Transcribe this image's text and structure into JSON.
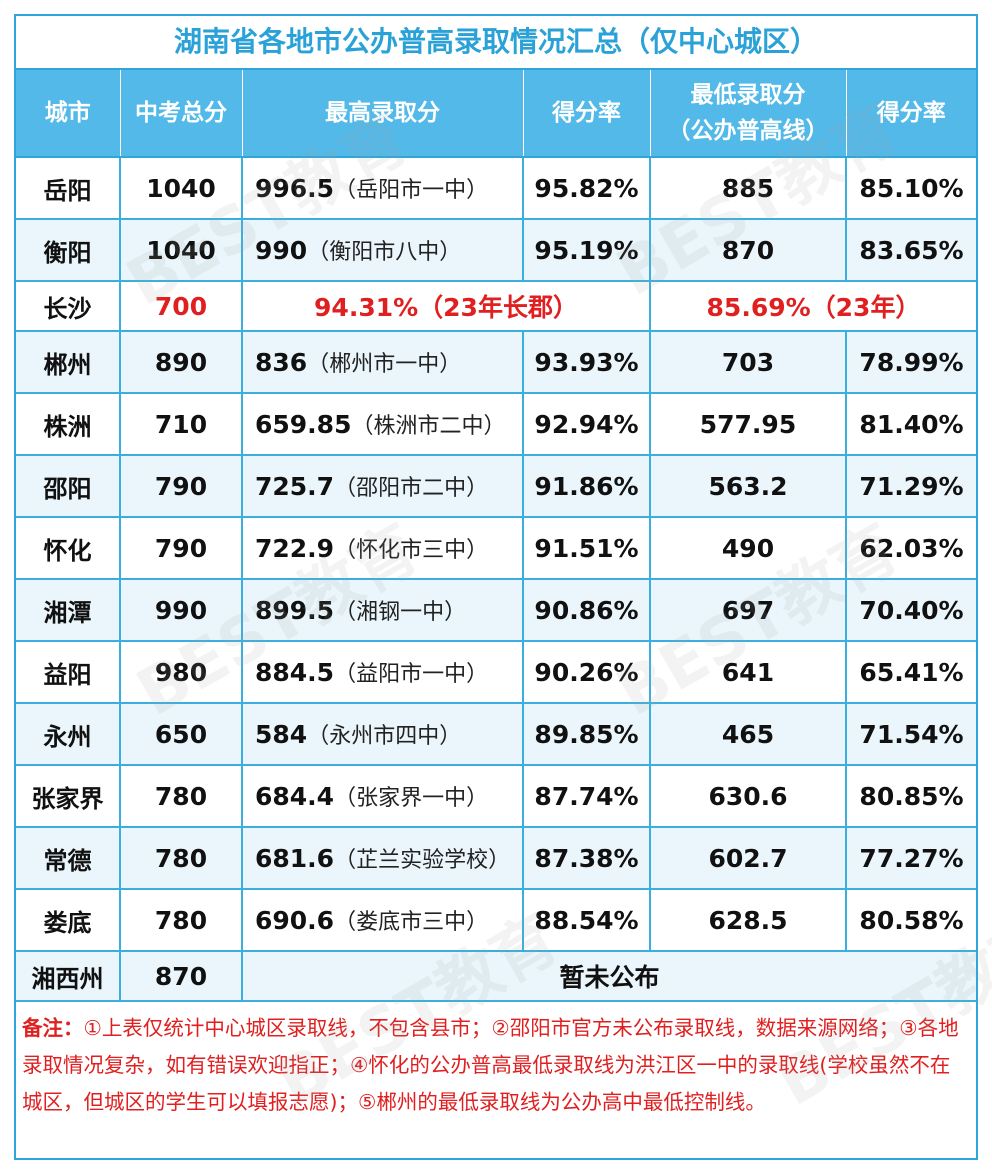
{
  "title": "湖南省各地市公办普高录取情况汇总（仅中心城区）",
  "colors": {
    "accent": "#2fa6d9",
    "header_bg": "#52b9e8",
    "highlight": "#e02020"
  },
  "headers": {
    "city": "城市",
    "total": "中考总分",
    "highest": "最高录取分",
    "rate1": "得分率",
    "lowest_line1": "最低录取分",
    "lowest_line2": "（公办普高线）",
    "rate2": "得分率"
  },
  "rows": [
    {
      "city": "岳阳",
      "total": "1040",
      "high_score": "996.5",
      "high_school": "（岳阳市一中）",
      "rate1": "95.82%",
      "low": "885",
      "rate2": "85.10%"
    },
    {
      "city": "衡阳",
      "total": "1040",
      "high_score": "990",
      "high_school": "（衡阳市八中）",
      "rate1": "95.19%",
      "low": "870",
      "rate2": "83.65%"
    },
    {
      "city": "长沙",
      "total": "700",
      "merged_high": "94.31%（23年长郡）",
      "merged_low": "85.69%（23年）"
    },
    {
      "city": "郴州",
      "total": "890",
      "high_score": "836",
      "high_school": "（郴州市一中）",
      "rate1": "93.93%",
      "low": "703",
      "rate2": "78.99%"
    },
    {
      "city": "株洲",
      "total": "710",
      "high_score": "659.85",
      "high_school": "（株洲市二中）",
      "rate1": "92.94%",
      "low": "577.95",
      "rate2": "81.40%"
    },
    {
      "city": "邵阳",
      "total": "790",
      "high_score": "725.7",
      "high_school": "（邵阳市二中）",
      "rate1": "91.86%",
      "low": "563.2",
      "rate2": "71.29%"
    },
    {
      "city": "怀化",
      "total": "790",
      "high_score": "722.9",
      "high_school": "（怀化市三中）",
      "rate1": "91.51%",
      "low": "490",
      "rate2": "62.03%"
    },
    {
      "city": "湘潭",
      "total": "990",
      "high_score": "899.5",
      "high_school": "（湘钢一中）",
      "rate1": "90.86%",
      "low": "697",
      "rate2": "70.40%"
    },
    {
      "city": "益阳",
      "total": "980",
      "high_score": "884.5",
      "high_school": "（益阳市一中）",
      "rate1": "90.26%",
      "low": "641",
      "rate2": "65.41%"
    },
    {
      "city": "永州",
      "total": "650",
      "high_score": "584",
      "high_school": "（永州市四中）",
      "rate1": "89.85%",
      "low": "465",
      "rate2": "71.54%"
    },
    {
      "city": "张家界",
      "total": "780",
      "high_score": "684.4",
      "high_school": "（张家界一中）",
      "rate1": "87.74%",
      "low": "630.6",
      "rate2": "80.85%"
    },
    {
      "city": "常德",
      "total": "780",
      "high_score": "681.6",
      "high_school": "（芷兰实验学校）",
      "rate1": "87.38%",
      "low": "602.7",
      "rate2": "77.27%"
    },
    {
      "city": "娄底",
      "total": "780",
      "high_score": "690.6",
      "high_school": "（娄底市三中）",
      "rate1": "88.54%",
      "low": "628.5",
      "rate2": "80.58%"
    },
    {
      "city": "湘西州",
      "total": "870",
      "merged_all": "暂未公布"
    }
  ],
  "notes": {
    "label": "备注：",
    "text": "①上表仅统计中心城区录取线，不包含县市；②邵阳市官方未公布录取线，数据来源网络；③各地录取情况复杂，如有错误欢迎指正；④怀化的公办普高最低录取线为洪江区一中的录取线(学校虽然不在城区，但城区的学生可以填报志愿)；⑤郴州的最低录取线为公办高中最低控制线。"
  },
  "watermark": "BEST教育"
}
